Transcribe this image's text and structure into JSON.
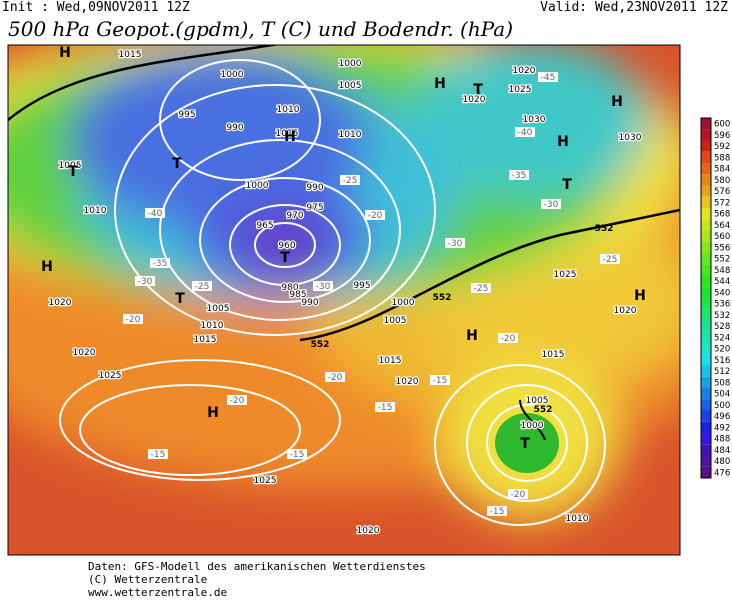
{
  "header": {
    "init": "Init : Wed,09NOV2011 12Z",
    "valid": "Valid: Wed,23NOV2011 12Z",
    "title": "500 hPa Geopot.(gpdm), T (C) und Bodendr. (hPa)"
  },
  "legend": {
    "labels": [
      "600",
      "596",
      "592",
      "588",
      "584",
      "580",
      "576",
      "572",
      "568",
      "564",
      "560",
      "556",
      "552",
      "548",
      "544",
      "540",
      "536",
      "532",
      "528",
      "524",
      "520",
      "516",
      "512",
      "508",
      "504",
      "500",
      "496",
      "492",
      "488",
      "484",
      "480",
      "476"
    ]
  },
  "map": {
    "pressure_labels": [
      "1015",
      "1000",
      "995",
      "990",
      "1010",
      "1005",
      "1000",
      "990",
      "975",
      "970",
      "965",
      "960",
      "980",
      "985",
      "990",
      "995",
      "1000",
      "1005",
      "1010",
      "1015",
      "1005",
      "1020",
      "1020",
      "1025",
      "1025",
      "1020",
      "1015",
      "1020",
      "1015",
      "1005",
      "1000",
      "1010",
      "1025",
      "1020",
      "1030",
      "1030",
      "1020",
      "1020",
      "1025",
      "1010",
      "1010",
      "1015",
      "1005",
      "1000"
    ],
    "temperature_labels": [
      "-40",
      "-35",
      "-30",
      "-25",
      "-20",
      "-20",
      "-15",
      "-15",
      "-20",
      "-15",
      "-15",
      "-20",
      "-25",
      "-30",
      "-35",
      "-40",
      "-45",
      "-30",
      "-25",
      "-20",
      "-15",
      "-25",
      "-30",
      "-20"
    ],
    "highs_lows": [
      "H",
      "T",
      "H",
      "T",
      "T",
      "H",
      "H",
      "T",
      "H",
      "H",
      "T",
      "H",
      "H",
      "H",
      "T",
      "T"
    ],
    "contour_labels": [
      "552",
      "552",
      "552",
      "552"
    ]
  },
  "footer": {
    "lines": [
      "Daten: GFS-Modell des amerikanischen Wetterdienstes",
      "(C) Wetterzentrale",
      "www.wetterzentrale.de"
    ]
  }
}
